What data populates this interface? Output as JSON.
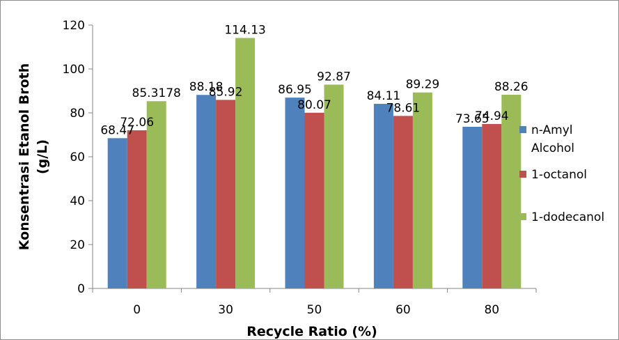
{
  "chart_data": {
    "type": "bar",
    "title": "",
    "xlabel": "Recycle Ratio (%)",
    "ylabel_line1": "Konsentrasi Etanol Broth",
    "ylabel_line2": "(g/L)",
    "categories": [
      "0",
      "30",
      "50",
      "60",
      "80"
    ],
    "ylim": [
      0,
      120
    ],
    "yticks": [
      "0",
      "20",
      "40",
      "60",
      "80",
      "100",
      "120"
    ],
    "grid": false,
    "legend_position": "right",
    "series": [
      {
        "name_line1": "n-Amyl",
        "name_line2": "Alcohol",
        "color": "#4f81bd",
        "values": [
          68.47,
          88.18,
          86.95,
          84.11,
          73.65
        ],
        "labels": [
          "68.47",
          "88.18",
          "86.95",
          "84.11",
          "73.65"
        ]
      },
      {
        "name_line1": "1-octanol",
        "name_line2": "",
        "color": "#c0504d",
        "values": [
          72.06,
          85.92,
          80.07,
          78.61,
          74.94
        ],
        "labels": [
          "72.06",
          "85.92",
          "80.07",
          "78.61",
          "74.94"
        ]
      },
      {
        "name_line1": "1-dodecanol",
        "name_line2": "",
        "color": "#9bbb59",
        "values": [
          85.3178,
          114.13,
          92.87,
          89.29,
          88.26
        ],
        "labels": [
          "85.3178",
          "114.13",
          "92.87",
          "89.29",
          "88.26"
        ]
      }
    ]
  }
}
